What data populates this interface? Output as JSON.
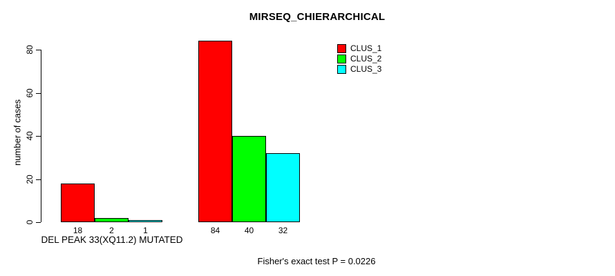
{
  "title": "MIRSEQ_CHIERARCHICAL",
  "ylabel": "number of cases",
  "group1_label": "DEL PEAK 33(XQ11.2) MUTATED",
  "caption": "Fisher's exact test P = 0.0226",
  "legend": [
    {
      "label": "CLUS_1",
      "color": "#ff0000"
    },
    {
      "label": "CLUS_2",
      "color": "#00ff00"
    },
    {
      "label": "CLUS_3",
      "color": "#00ffff"
    }
  ],
  "chart_data": {
    "type": "bar",
    "title": "MIRSEQ_CHIERARCHICAL",
    "xlabel": "",
    "ylabel": "number of cases",
    "ylim": [
      0,
      84
    ],
    "yticks": [
      0,
      20,
      40,
      60,
      80
    ],
    "grid": false,
    "legend_position": "top-right",
    "bar_colors": [
      "#ff0000",
      "#00ff00",
      "#00ffff"
    ],
    "series": [
      {
        "name": "CLUS_1",
        "color": "#ff0000",
        "values": [
          18,
          84
        ]
      },
      {
        "name": "CLUS_2",
        "color": "#00ff00",
        "values": [
          2,
          40
        ]
      },
      {
        "name": "CLUS_3",
        "color": "#00ffff",
        "values": [
          1,
          32
        ]
      }
    ],
    "groups": [
      {
        "label": "DEL PEAK 33(XQ11.2) MUTATED",
        "values": [
          18,
          2,
          1
        ]
      },
      {
        "label": "",
        "values": [
          84,
          40,
          32
        ]
      }
    ],
    "annotation": "Fisher's exact test P = 0.0226"
  }
}
